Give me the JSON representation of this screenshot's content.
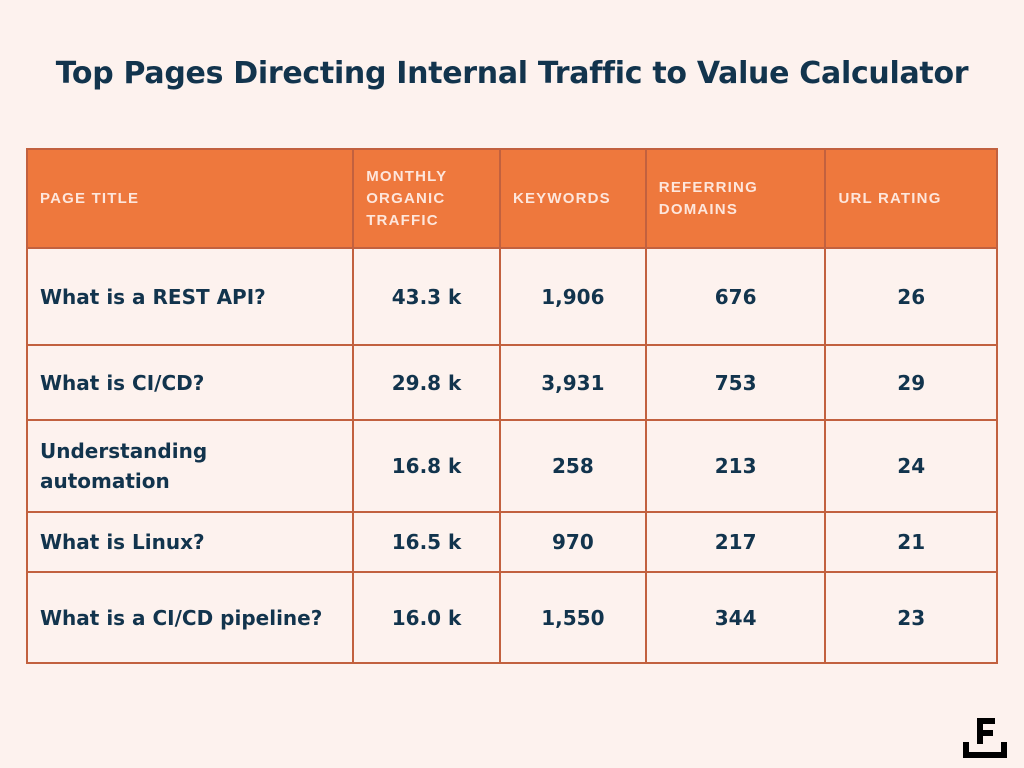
{
  "title": "Top Pages Directing Internal Traffic to Value Calculator",
  "table": {
    "headers": [
      "PAGE TITLE",
      "MONTHLY ORGANIC TRAFFIC",
      "KEYWORDS",
      "REFERRING DOMAINS",
      "URL RATING"
    ],
    "rows": [
      {
        "page_title": "What is a REST API?",
        "traffic": "43.3 k",
        "keywords": "1,906",
        "referring_domains": "676",
        "url_rating": "26"
      },
      {
        "page_title": "What is CI/CD?",
        "traffic": "29.8 k",
        "keywords": "3,931",
        "referring_domains": "753",
        "url_rating": "29"
      },
      {
        "page_title": "Understanding automation",
        "traffic": "16.8 k",
        "keywords": "258",
        "referring_domains": "213",
        "url_rating": "24"
      },
      {
        "page_title": "What is Linux?",
        "traffic": "16.5 k",
        "keywords": "970",
        "referring_domains": "217",
        "url_rating": "21"
      },
      {
        "page_title": "What is a CI/CD pipeline?",
        "traffic": "16.0 k",
        "keywords": "1,550",
        "referring_domains": "344",
        "url_rating": "23"
      }
    ]
  },
  "logo": {
    "letter": "F",
    "icon": "brand-logo-icon"
  },
  "colors": {
    "background": "#fdf2ee",
    "header": "#ee783d",
    "border": "#c2613f",
    "text": "#12344d"
  }
}
